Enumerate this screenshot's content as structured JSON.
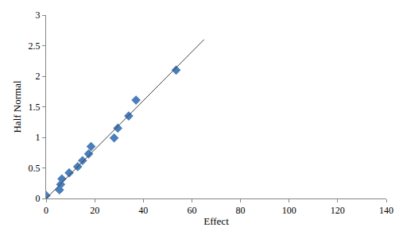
{
  "chart_data": {
    "type": "scatter",
    "x_label": "Effect",
    "y_label": "Half Normal",
    "series": [
      {
        "type": "scatter",
        "color": "#4a7ebb",
        "marker": "diamond",
        "x": [
          0,
          5.5,
          6,
          6.5,
          9.5,
          13,
          15,
          17.5,
          18.5,
          28,
          29.5,
          34,
          37,
          53.5
        ],
        "values": [
          0.05,
          0.14,
          0.23,
          0.32,
          0.42,
          0.52,
          0.62,
          0.73,
          0.85,
          0.99,
          1.15,
          1.35,
          1.61,
          2.1
        ]
      },
      {
        "type": "line",
        "color": "#404040",
        "line_style": "solid",
        "x": [
          0,
          65
        ],
        "values": [
          0,
          2.6
        ]
      }
    ],
    "xlim": [
      0,
      140
    ],
    "xticks": [
      0,
      20,
      40,
      60,
      80,
      100,
      120,
      140
    ],
    "ylim": [
      0,
      3
    ],
    "yticks": [
      0,
      0.5,
      1,
      1.5,
      2,
      2.5,
      3
    ],
    "grid": false
  }
}
